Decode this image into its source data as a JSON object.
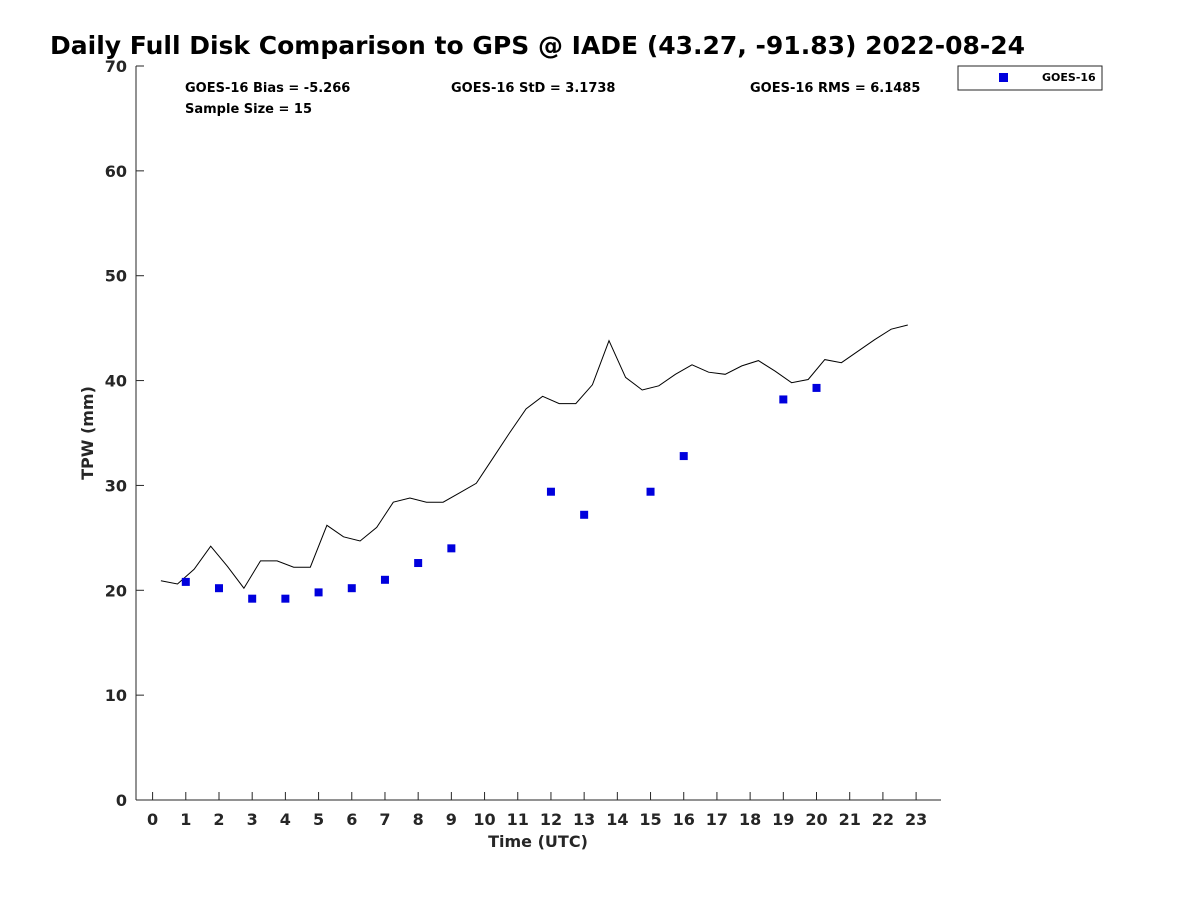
{
  "chart_data": {
    "type": "scatter",
    "title": "Daily Full Disk Comparison to GPS @ IADE (43.27, -91.83) 2022-08-24",
    "xlabel": "Time (UTC)",
    "ylabel": "TPW (mm)",
    "xlim": [
      -0.5,
      23.75
    ],
    "ylim": [
      0,
      70
    ],
    "x_ticks": [
      "0",
      "1",
      "2",
      "3",
      "4",
      "5",
      "6",
      "7",
      "8",
      "9",
      "10",
      "11",
      "12",
      "13",
      "14",
      "15",
      "16",
      "17",
      "18",
      "19",
      "20",
      "21",
      "22",
      "23"
    ],
    "y_ticks": [
      "0",
      "10",
      "20",
      "30",
      "40",
      "50",
      "60",
      "70"
    ],
    "grid": false,
    "legend_position": "top-right, outside plot",
    "stats": {
      "bias": "GOES-16 Bias = -5.266",
      "std": "GOES-16 StD = 3.1738",
      "rms": "GOES-16 RMS = 6.1485",
      "sample": "Sample Size = 15"
    },
    "series": [
      {
        "name": "GOES-16",
        "kind": "scatter",
        "color": "#0000dd",
        "marker": "square",
        "x": [
          1,
          2,
          3,
          4,
          5,
          6,
          7,
          8,
          9,
          12,
          13,
          15,
          16,
          19,
          20
        ],
        "y": [
          20.8,
          20.2,
          19.2,
          19.2,
          19.8,
          20.2,
          21.0,
          22.6,
          24.0,
          29.4,
          27.2,
          29.4,
          32.8,
          38.2,
          39.3
        ]
      },
      {
        "kind": "line",
        "color": "#000000",
        "x": [
          0.25,
          0.75,
          1.25,
          1.75,
          2.25,
          2.75,
          3.25,
          3.75,
          4.25,
          4.75,
          5.25,
          5.75,
          6.25,
          6.75,
          7.25,
          7.75,
          8.25,
          8.75,
          9.25,
          9.75,
          10.25,
          10.75,
          11.25,
          11.75,
          12.25,
          12.75,
          13.25,
          13.75,
          14.25,
          14.75,
          15.25,
          15.75,
          16.25,
          16.75,
          17.25,
          17.75,
          18.25,
          18.75,
          19.25,
          19.75,
          20.25,
          20.75,
          21.25,
          21.75,
          22.25,
          22.75
        ],
        "y": [
          20.9,
          20.6,
          22.0,
          24.2,
          22.3,
          20.2,
          22.8,
          22.8,
          22.2,
          22.2,
          26.2,
          25.1,
          24.7,
          26.0,
          28.4,
          28.8,
          28.4,
          28.4,
          29.3,
          30.2,
          32.6,
          35.0,
          37.3,
          38.5,
          37.8,
          37.8,
          39.6,
          43.8,
          40.3,
          39.1,
          39.5,
          40.6,
          41.5,
          40.8,
          40.6,
          41.4,
          41.9,
          40.9,
          39.8,
          40.1,
          42.0,
          41.7,
          42.8,
          43.9,
          44.9,
          45.3
        ]
      }
    ]
  }
}
